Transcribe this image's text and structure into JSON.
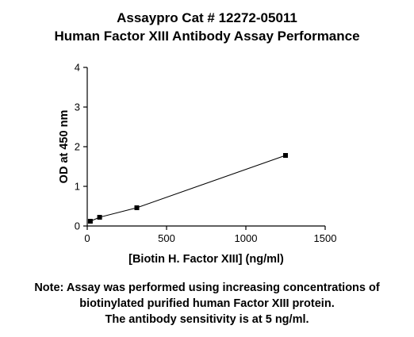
{
  "chart_data": {
    "type": "line",
    "title": [
      "Assaypro Cat # 12272-05011",
      "Human Factor XIII Antibody Assay Performance"
    ],
    "xlabel": "[Biotin H. Factor XIII] (ng/ml)",
    "ylabel": "OD at 450 nm",
    "xlim": [
      0,
      1500
    ],
    "ylim": [
      0,
      4
    ],
    "xticks": [
      0,
      500,
      1000,
      1500
    ],
    "yticks": [
      0,
      1,
      2,
      3,
      4
    ],
    "grid": false,
    "series": [
      {
        "x": [
          19.5,
          78,
          312.5,
          1250
        ],
        "y": [
          0.12,
          0.22,
          0.46,
          1.78
        ],
        "marker": "square",
        "color": "#000000"
      }
    ]
  },
  "note": [
    "Note: Assay was performed using increasing concentrations of",
    "biotinylated purified human Factor XIII protein.",
    "The antibody sensitivity is at 5 ng/ml."
  ]
}
